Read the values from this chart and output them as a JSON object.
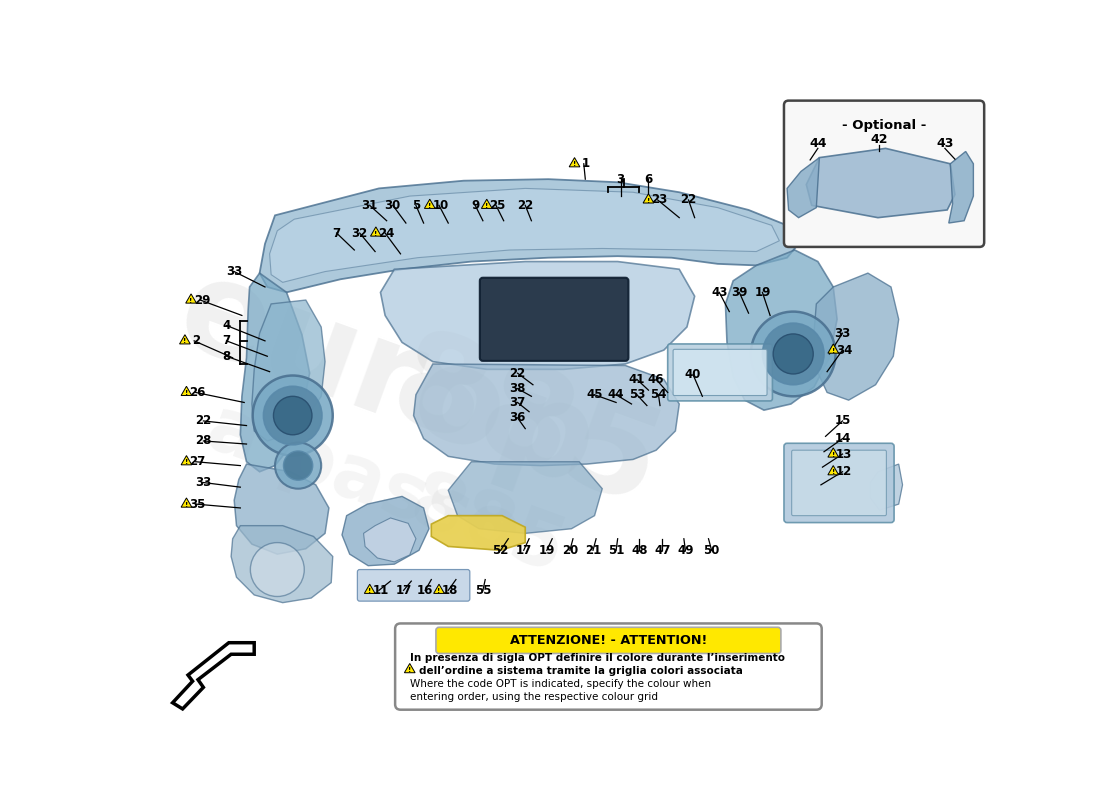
{
  "bg_color": "#ffffff",
  "att_title": "ATTENZIONE! - ATTENTION!",
  "att_lines": [
    "In presenza di sigla OPT definire il colore durante l’inserimento",
    "dell’ordine a sistema tramite la griglia colori associata",
    "Where the code OPT is indicated, specify the colour when",
    "entering order, using the respective colour grid"
  ],
  "opt_label": "- Optional -",
  "c_main": "#9bbdd4",
  "c_dark": "#5a8aaa",
  "c_light": "#c0d8ea",
  "c_edge": "#4a7090",
  "c_med": "#7aaac5"
}
